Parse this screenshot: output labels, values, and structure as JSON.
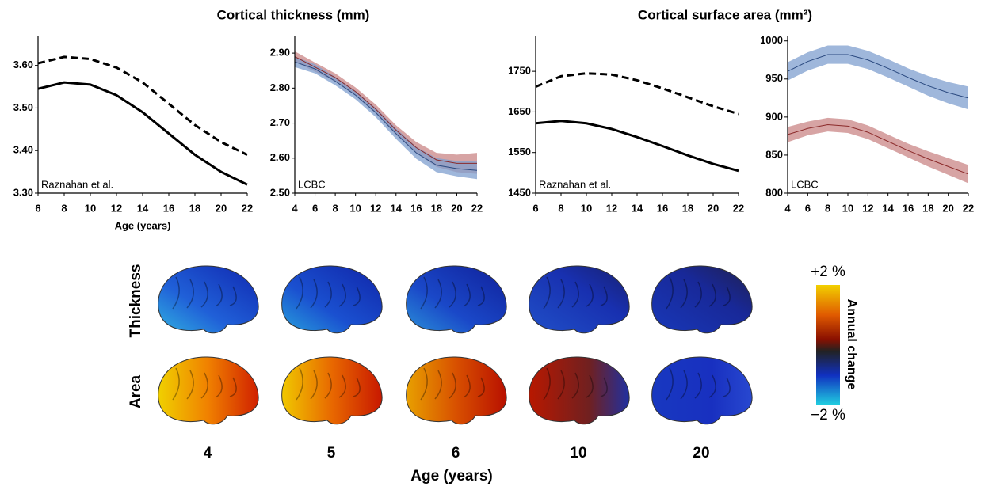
{
  "chart_data": [
    {
      "type": "line",
      "title": "Cortical thickness (mm)",
      "xlabel": "Age (years)",
      "annotation": "Raznahan et al.",
      "x": [
        6,
        8,
        10,
        12,
        14,
        16,
        18,
        20,
        22
      ],
      "series": [
        {
          "color": "#000000",
          "dashed": false,
          "values": [
            3.545,
            3.56,
            3.555,
            3.53,
            3.49,
            3.44,
            3.39,
            3.35,
            3.32
          ]
        },
        {
          "color": "#000000",
          "dashed": true,
          "values": [
            3.605,
            3.62,
            3.615,
            3.595,
            3.56,
            3.51,
            3.46,
            3.42,
            3.39
          ]
        }
      ],
      "xlim": [
        6,
        22
      ],
      "xticks": [
        6,
        8,
        10,
        12,
        14,
        16,
        18,
        20,
        22
      ],
      "ylim": [
        3.3,
        3.67
      ],
      "yticks": [
        {
          "value": 3.3,
          "label": "3.30"
        },
        {
          "value": 3.4,
          "label": "3.40"
        },
        {
          "value": 3.5,
          "label": "3.50"
        },
        {
          "value": 3.6,
          "label": "3.60"
        }
      ]
    },
    {
      "type": "line",
      "annotation": "LCBC",
      "x": [
        4,
        6,
        8,
        10,
        12,
        14,
        16,
        18,
        20,
        22
      ],
      "series": [
        {
          "color": "#8b2a2a",
          "band_color": "#c98686",
          "values": [
            2.89,
            2.86,
            2.83,
            2.79,
            2.74,
            2.68,
            2.63,
            2.595,
            2.585,
            2.585
          ],
          "lower": [
            2.875,
            2.847,
            2.818,
            2.778,
            2.727,
            2.666,
            2.614,
            2.575,
            2.56,
            2.555
          ],
          "upper": [
            2.905,
            2.873,
            2.842,
            2.802,
            2.753,
            2.694,
            2.646,
            2.615,
            2.61,
            2.615
          ]
        },
        {
          "color": "#2b4a80",
          "band_color": "#7f9fcf",
          "values": [
            2.875,
            2.855,
            2.82,
            2.78,
            2.73,
            2.67,
            2.615,
            2.58,
            2.57,
            2.565
          ],
          "lower": [
            2.86,
            2.842,
            2.808,
            2.768,
            2.717,
            2.655,
            2.598,
            2.56,
            2.548,
            2.54
          ],
          "upper": [
            2.89,
            2.868,
            2.832,
            2.792,
            2.743,
            2.685,
            2.632,
            2.6,
            2.592,
            2.59
          ]
        }
      ],
      "xlim": [
        4,
        22
      ],
      "xticks": [
        4,
        6,
        8,
        10,
        12,
        14,
        16,
        18,
        20,
        22
      ],
      "ylim": [
        2.5,
        2.95
      ],
      "yticks": [
        {
          "value": 2.5,
          "label": "2.50"
        },
        {
          "value": 2.6,
          "label": "2.60"
        },
        {
          "value": 2.7,
          "label": "2.70"
        },
        {
          "value": 2.8,
          "label": "2.80"
        },
        {
          "value": 2.9,
          "label": "2.90"
        }
      ]
    },
    {
      "type": "line",
      "title": "Cortical surface area (mm²)",
      "annotation": "Raznahan et al.",
      "x": [
        6,
        8,
        10,
        12,
        14,
        16,
        18,
        20,
        22
      ],
      "series": [
        {
          "color": "#000000",
          "dashed": false,
          "values": [
            1622,
            1628,
            1622,
            1608,
            1588,
            1566,
            1543,
            1522,
            1505
          ]
        },
        {
          "color": "#000000",
          "dashed": true,
          "values": [
            1712,
            1738,
            1745,
            1742,
            1728,
            1708,
            1686,
            1664,
            1645
          ]
        }
      ],
      "xlim": [
        6,
        22
      ],
      "xticks": [
        6,
        8,
        10,
        12,
        14,
        16,
        18,
        20,
        22
      ],
      "ylim": [
        1450,
        1838
      ],
      "yticks": [
        1450,
        1550,
        1650,
        1750
      ]
    },
    {
      "type": "line",
      "annotation": "LCBC",
      "x": [
        4,
        6,
        8,
        10,
        12,
        14,
        16,
        18,
        20,
        22
      ],
      "series": [
        {
          "color": "#2b4a80",
          "band_color": "#7f9fcf",
          "values": [
            960,
            973,
            982,
            982,
            975,
            964,
            952,
            941,
            932,
            925
          ],
          "lower": [
            948,
            961,
            970,
            970,
            963,
            952,
            940,
            928,
            918,
            910
          ],
          "upper": [
            972,
            985,
            994,
            994,
            987,
            976,
            964,
            954,
            946,
            940
          ]
        },
        {
          "color": "#8b2a2a",
          "band_color": "#c98686",
          "values": [
            877,
            885,
            890,
            888,
            880,
            868,
            856,
            845,
            835,
            825
          ],
          "lower": [
            867,
            876,
            881,
            879,
            871,
            859,
            847,
            835,
            824,
            813
          ],
          "upper": [
            887,
            894,
            899,
            897,
            889,
            877,
            865,
            855,
            846,
            837
          ]
        }
      ],
      "xlim": [
        4,
        22
      ],
      "xticks": [
        4,
        6,
        8,
        10,
        12,
        14,
        16,
        18,
        20,
        22
      ],
      "ylim": [
        800,
        1007
      ],
      "yticks": [
        800,
        850,
        900,
        950,
        1000
      ]
    }
  ],
  "brain_panel": {
    "rows": [
      "Thickness",
      "Area"
    ],
    "ages": [
      "4",
      "5",
      "6",
      "10",
      "20"
    ],
    "xlabel": "Age (years)",
    "colorbar": {
      "top": "+2 %",
      "bottom": "−2 %",
      "label": "Annual change"
    }
  }
}
